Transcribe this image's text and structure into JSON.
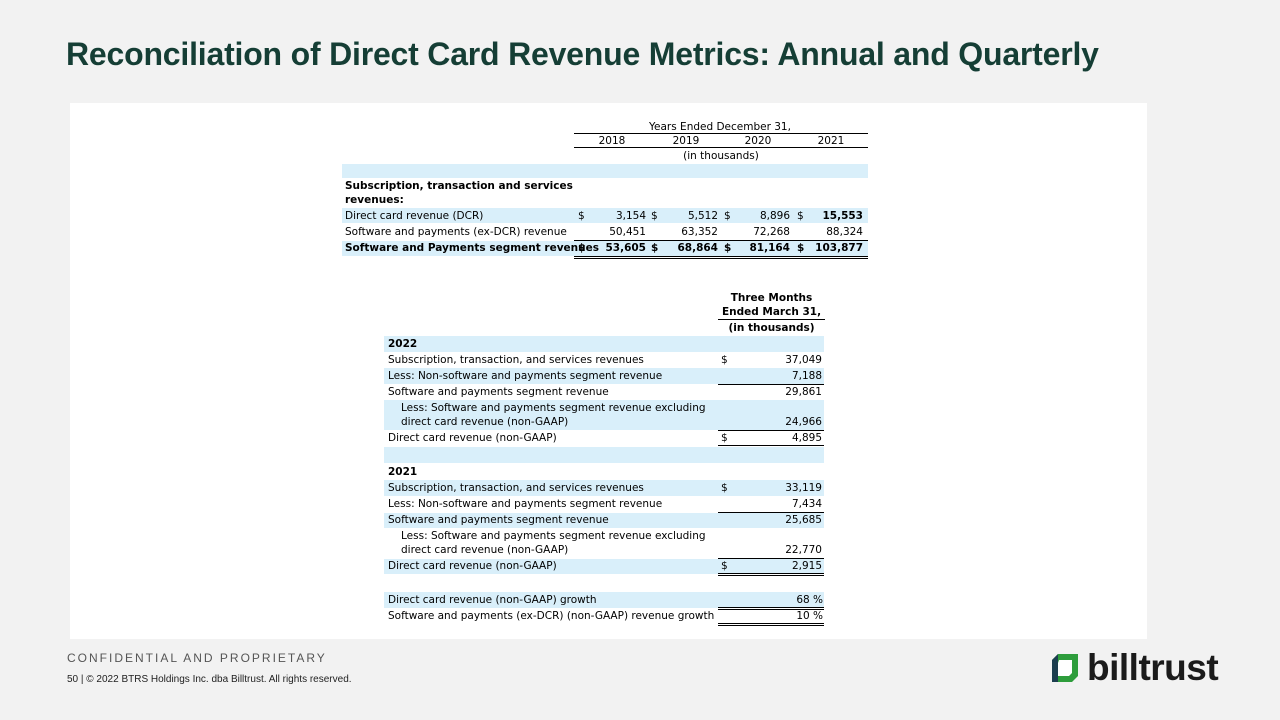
{
  "title": "Reconciliation of Direct Card Revenue Metrics: Annual and Quarterly",
  "annual": {
    "period_header": "Years Ended December 31,",
    "years": [
      "2018",
      "2019",
      "2020",
      "2021"
    ],
    "units": "(in thousands)",
    "section_label_1": "Subscription, transaction and services",
    "section_label_2": "revenues:",
    "rows": [
      {
        "label": "Direct card revenue (DCR)",
        "c0": "$",
        "v0": "3,154",
        "c1": "$",
        "v1": "5,512",
        "c2": "$",
        "v2": "8,896",
        "c3": "$",
        "v3": "15,553"
      },
      {
        "label": "Software and payments (ex-DCR) revenue",
        "c0": "",
        "v0": "50,451",
        "c1": "",
        "v1": "63,352",
        "c2": "",
        "v2": "72,268",
        "c3": "",
        "v3": "88,324"
      },
      {
        "label": "Software and Payments segment revenues",
        "c0": "$",
        "v0": "53,605",
        "c1": "$",
        "v1": "68,864",
        "c2": "$",
        "v2": "81,164",
        "c3": "$",
        "v3": "103,877"
      }
    ]
  },
  "quarterly": {
    "header_1": "Three Months",
    "header_2": "Ended March 31,",
    "units": "(in thousands)",
    "y2022": {
      "year": "2022",
      "rows": [
        {
          "label": "Subscription, transaction, and services revenues",
          "cur": "$",
          "value": "37,049"
        },
        {
          "label": "Less: Non-software and payments segment revenue",
          "cur": "",
          "value": "7,188"
        },
        {
          "label": "Software and payments segment revenue",
          "cur": "",
          "value": "29,861"
        },
        {
          "label_1": "Less: Software and payments segment revenue excluding",
          "label_2": "direct card revenue (non-GAAP)",
          "cur": "",
          "value": "24,966"
        },
        {
          "label": "Direct card revenue (non-GAAP)",
          "cur": "$",
          "value": "4,895"
        }
      ]
    },
    "y2021": {
      "year": "2021",
      "rows": [
        {
          "label": "Subscription, transaction, and services revenues",
          "cur": "$",
          "value": "33,119"
        },
        {
          "label": "Less: Non-software and payments segment revenue",
          "cur": "",
          "value": "7,434"
        },
        {
          "label": "Software and payments segment revenue",
          "cur": "",
          "value": "25,685"
        },
        {
          "label_1": "Less: Software and payments segment revenue excluding",
          "label_2": "direct card revenue (non-GAAP)",
          "cur": "",
          "value": "22,770"
        },
        {
          "label": "Direct card revenue (non-GAAP)",
          "cur": "$",
          "value": "2,915"
        }
      ]
    },
    "growth": [
      {
        "label": "Direct card revenue (non-GAAP) growth",
        "value": "68 %"
      },
      {
        "label": "Software and payments (ex-DCR) (non-GAAP) revenue growth",
        "value": "10 %"
      }
    ]
  },
  "footer": {
    "confidential": "CONFIDENTIAL AND PROPRIETARY",
    "copyright": "50  |  © 2022 BTRS Holdings Inc. dba Billtrust. All rights reserved.",
    "logo_text": "billtrust"
  },
  "colors": {
    "title": "#153e35",
    "band": "#d9effa",
    "logo_green": "#2e9d3c",
    "logo_teal": "#1c3e4f"
  }
}
